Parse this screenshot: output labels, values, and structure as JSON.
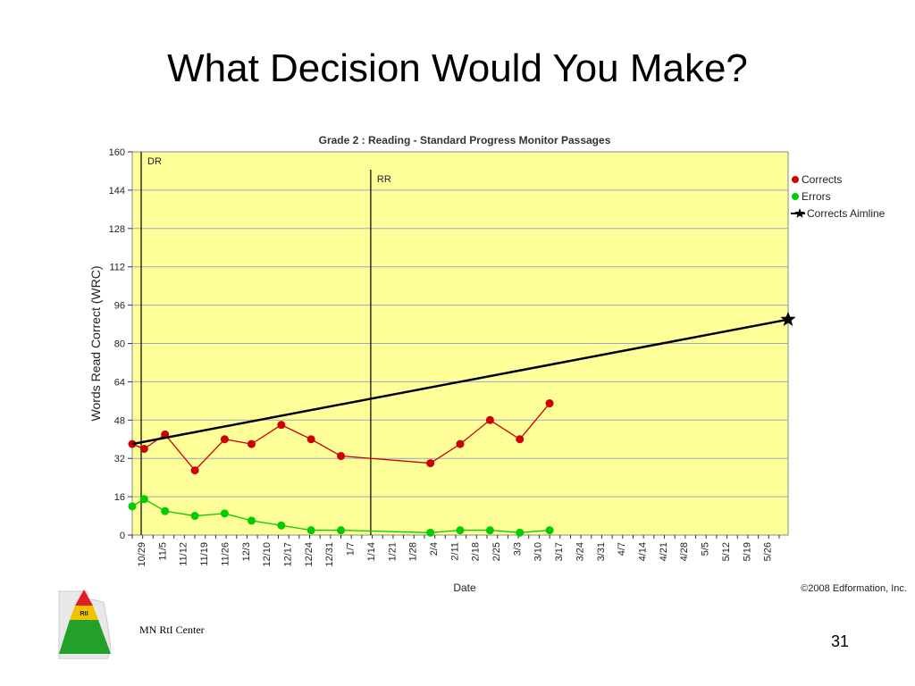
{
  "slide": {
    "title": "What Decision Would You Make?",
    "footer_left": "MN RtI Center",
    "slide_number": "31",
    "logo_text": "RtI"
  },
  "chart_data": {
    "type": "line",
    "title": "Grade 2 : Reading - Standard Progress Monitor Passages",
    "xlabel": "Date",
    "ylabel": "Words Read Correct (WRC)",
    "ylim": [
      0,
      160
    ],
    "yticks": [
      0,
      16,
      32,
      48,
      64,
      80,
      96,
      112,
      128,
      144,
      160
    ],
    "x_tick_labels": [
      "10/29",
      "11/5",
      "11/12",
      "11/19",
      "11/26",
      "12/3",
      "12/10",
      "12/17",
      "12/24",
      "12/31",
      "1/7",
      "1/14",
      "1/21",
      "1/28",
      "2/4",
      "2/11",
      "2/18",
      "2/25",
      "3/3",
      "3/10",
      "3/17",
      "3/24",
      "3/31",
      "4/7",
      "4/14",
      "4/21",
      "4/28",
      "5/5",
      "5/12",
      "5/19",
      "5/26"
    ],
    "x_range": [
      "2007-10-26",
      "2008-06-02"
    ],
    "copyright": "©2008 Edformation, Inc.",
    "grid": true,
    "legend_position": "right",
    "background_color": "#ffff99",
    "vertical_markers": [
      {
        "label": "DR",
        "date": "2007-10-29"
      },
      {
        "label": "RR",
        "date": "2008-01-14"
      }
    ],
    "series": [
      {
        "name": "Corrects",
        "color": "#cc0000",
        "marker": "circle",
        "points": [
          {
            "x": "2007-10-26",
            "y": 38
          },
          {
            "x": "2007-10-30",
            "y": 36
          },
          {
            "x": "2007-11-06",
            "y": 42
          },
          {
            "x": "2007-11-16",
            "y": 27
          },
          {
            "x": "2007-11-26",
            "y": 40
          },
          {
            "x": "2007-12-05",
            "y": 38
          },
          {
            "x": "2007-12-15",
            "y": 46
          },
          {
            "x": "2007-12-25",
            "y": 40
          },
          {
            "x": "2008-01-04",
            "y": 33
          },
          {
            "x": "2008-02-03",
            "y": 30
          },
          {
            "x": "2008-02-13",
            "y": 38
          },
          {
            "x": "2008-02-23",
            "y": 48
          },
          {
            "x": "2008-03-04",
            "y": 40
          },
          {
            "x": "2008-03-14",
            "y": 55
          }
        ]
      },
      {
        "name": "Errors",
        "color": "#00cc00",
        "marker": "circle",
        "points": [
          {
            "x": "2007-10-26",
            "y": 12
          },
          {
            "x": "2007-10-30",
            "y": 15
          },
          {
            "x": "2007-11-06",
            "y": 10
          },
          {
            "x": "2007-11-16",
            "y": 8
          },
          {
            "x": "2007-11-26",
            "y": 9
          },
          {
            "x": "2007-12-05",
            "y": 6
          },
          {
            "x": "2007-12-15",
            "y": 4
          },
          {
            "x": "2007-12-25",
            "y": 2
          },
          {
            "x": "2008-01-04",
            "y": 2
          },
          {
            "x": "2008-02-03",
            "y": 1
          },
          {
            "x": "2008-02-13",
            "y": 2
          },
          {
            "x": "2008-02-23",
            "y": 2
          },
          {
            "x": "2008-03-04",
            "y": 1
          },
          {
            "x": "2008-03-14",
            "y": 2
          }
        ]
      },
      {
        "name": "Corrects Aimline",
        "color": "#000000",
        "marker": "star",
        "points": [
          {
            "x": "2007-10-26",
            "y": 38
          },
          {
            "x": "2008-06-02",
            "y": 90
          }
        ]
      }
    ]
  }
}
